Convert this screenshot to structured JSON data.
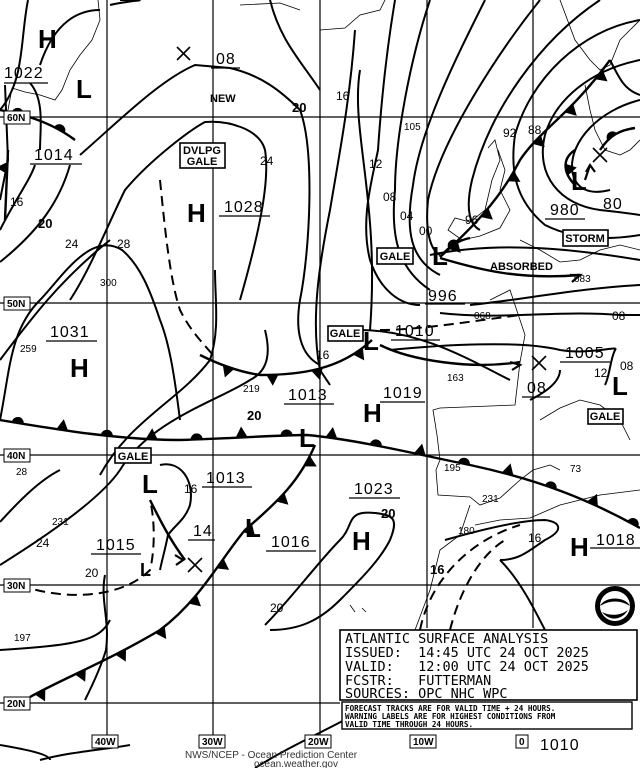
{
  "legend": {
    "title": "ATLANTIC SURFACE ANALYSIS",
    "issued": "ISSUED:  14:45 UTC 24 OCT 2025",
    "valid": "VALID:   12:00 UTC 24 OCT 2025",
    "forecaster": "FCSTR:   FUTTERMAN",
    "sources": "SOURCES: OPC NHC WPC",
    "notice": [
      "FORECAST TRACKS ARE FOR VALID TIME + 24 HOURS.",
      "WARNING LABELS ARE FOR HIGHEST CONDITIONS FROM",
      "VALID TIME THROUGH 24 HOURS."
    ]
  },
  "footer": {
    "line1": "NWS/NCEP - Ocean Prediction Center",
    "line2": "ocean.weather.gov"
  },
  "latitudes": [
    "60N",
    "50N",
    "40N",
    "30N",
    "20N"
  ],
  "longitudes": [
    "40W",
    "30W",
    "20W",
    "10W",
    "0"
  ],
  "centers": [
    "H",
    "L",
    "H",
    "H",
    "H",
    "H",
    "H",
    "L",
    "L",
    "L",
    "L",
    "L",
    "L",
    "L",
    "L"
  ],
  "pressures": [
    "1022",
    "1014",
    "1028",
    "1031",
    "1013",
    "1019",
    "1010",
    "1005",
    "996",
    "980",
    "80",
    "1013",
    "14",
    "1015",
    "1016",
    "1023",
    "1018",
    "08",
    "08",
    "1010"
  ],
  "isobar_labels": [
    "16",
    "20",
    "24",
    "28",
    "24",
    "20",
    "16",
    "12",
    "08",
    "04",
    "00",
    "96",
    "92",
    "88",
    "16",
    "20",
    "16",
    "24",
    "20",
    "20",
    "20",
    "16",
    "16",
    "12",
    "08",
    "08"
  ],
  "observations": [
    "105",
    "300",
    "259",
    "219",
    "163",
    "195",
    "73",
    "231",
    "180",
    "068",
    "083",
    "197",
    "28",
    "231"
  ],
  "warnings": {
    "dvlpg1": "DVLPG",
    "dvlpg2": "GALE",
    "gale": "GALE",
    "storm": "STORM"
  },
  "annotations": {
    "new": "NEW",
    "absorbed": "ABSORBED"
  },
  "logo": "NOAA",
  "colors": {
    "ink": "#000000",
    "background": "#ffffff"
  }
}
